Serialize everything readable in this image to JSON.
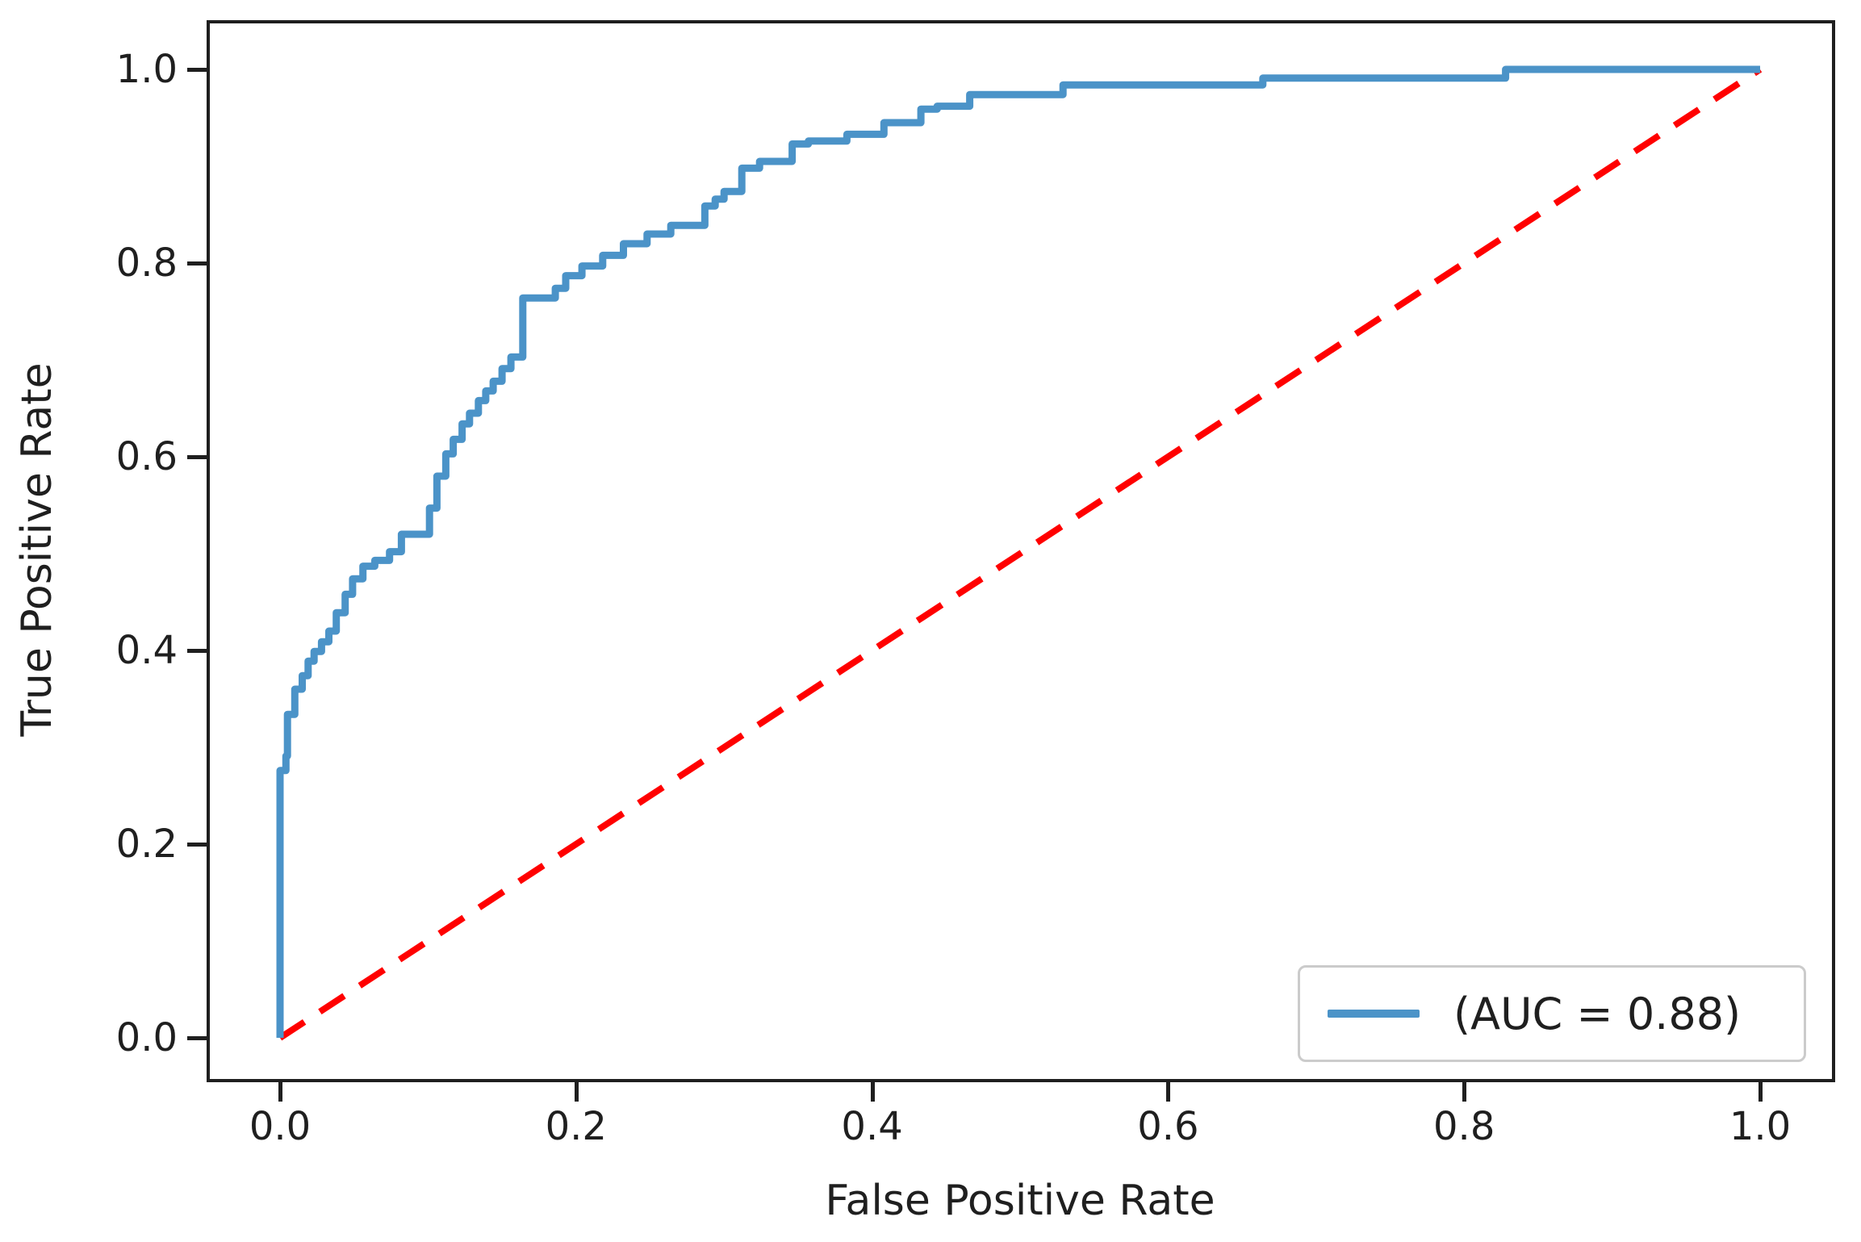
{
  "figure": {
    "title": "",
    "xlabel": "False Positive Rate",
    "ylabel": "True Positive Rate",
    "legend_label": "(AUC = 0.88)",
    "auc_value": "0.88",
    "colors": {
      "roc_line": "#4b93c8",
      "diagonal_line": "#ff0000",
      "axis": "#1f1f1f",
      "legend_border": "#cbcbcb",
      "background": "#ffffff"
    }
  },
  "chart_data": {
    "type": "line",
    "title": "",
    "xlabel": "False Positive Rate",
    "ylabel": "True Positive Rate",
    "xlim": [
      -0.05,
      1.05
    ],
    "ylim": [
      -0.04,
      1.05
    ],
    "grid": false,
    "legend_position": "lower right",
    "legend_entries": [
      {
        "label": "(AUC = 0.88)",
        "color": "#4b93c8",
        "style": "solid"
      }
    ],
    "auc": 0.88,
    "x_ticks": [
      {
        "label": "0.0",
        "value": 0.0
      },
      {
        "label": "0.2",
        "value": 0.2
      },
      {
        "label": "0.4",
        "value": 0.4
      },
      {
        "label": "0.6",
        "value": 0.6
      },
      {
        "label": "0.8",
        "value": 0.8
      },
      {
        "label": "1.0",
        "value": 1.0
      }
    ],
    "y_ticks": [
      {
        "label": "0.0",
        "value": 0.0
      },
      {
        "label": "0.2",
        "value": 0.2
      },
      {
        "label": "0.4",
        "value": 0.4
      },
      {
        "label": "0.6",
        "value": 0.6
      },
      {
        "label": "0.8",
        "value": 0.8
      },
      {
        "label": "1.0",
        "value": 1.0
      }
    ],
    "series": [
      {
        "name": "ROC curve",
        "style": "solid",
        "color": "#4b93c8",
        "line_width": 9,
        "points": [
          [
            0.0,
            0.0
          ],
          [
            0.0,
            0.276
          ],
          [
            0.004,
            0.276
          ],
          [
            0.004,
            0.291
          ],
          [
            0.005,
            0.291
          ],
          [
            0.005,
            0.334
          ],
          [
            0.01,
            0.334
          ],
          [
            0.01,
            0.36
          ],
          [
            0.015,
            0.36
          ],
          [
            0.015,
            0.374
          ],
          [
            0.019,
            0.374
          ],
          [
            0.019,
            0.389
          ],
          [
            0.023,
            0.389
          ],
          [
            0.023,
            0.399
          ],
          [
            0.028,
            0.399
          ],
          [
            0.028,
            0.409
          ],
          [
            0.033,
            0.409
          ],
          [
            0.033,
            0.42
          ],
          [
            0.038,
            0.42
          ],
          [
            0.038,
            0.439
          ],
          [
            0.044,
            0.439
          ],
          [
            0.044,
            0.458
          ],
          [
            0.049,
            0.458
          ],
          [
            0.049,
            0.474
          ],
          [
            0.056,
            0.474
          ],
          [
            0.056,
            0.487
          ],
          [
            0.064,
            0.487
          ],
          [
            0.064,
            0.493
          ],
          [
            0.074,
            0.493
          ],
          [
            0.074,
            0.502
          ],
          [
            0.082,
            0.502
          ],
          [
            0.082,
            0.52
          ],
          [
            0.101,
            0.52
          ],
          [
            0.101,
            0.547
          ],
          [
            0.106,
            0.547
          ],
          [
            0.106,
            0.58
          ],
          [
            0.112,
            0.58
          ],
          [
            0.112,
            0.603
          ],
          [
            0.117,
            0.603
          ],
          [
            0.117,
            0.618
          ],
          [
            0.123,
            0.618
          ],
          [
            0.123,
            0.634
          ],
          [
            0.128,
            0.634
          ],
          [
            0.128,
            0.645
          ],
          [
            0.134,
            0.645
          ],
          [
            0.134,
            0.658
          ],
          [
            0.139,
            0.658
          ],
          [
            0.139,
            0.668
          ],
          [
            0.144,
            0.668
          ],
          [
            0.144,
            0.678
          ],
          [
            0.15,
            0.678
          ],
          [
            0.15,
            0.691
          ],
          [
            0.156,
            0.691
          ],
          [
            0.156,
            0.703
          ],
          [
            0.164,
            0.703
          ],
          [
            0.164,
            0.764
          ],
          [
            0.186,
            0.764
          ],
          [
            0.186,
            0.774
          ],
          [
            0.193,
            0.774
          ],
          [
            0.193,
            0.787
          ],
          [
            0.204,
            0.787
          ],
          [
            0.204,
            0.797
          ],
          [
            0.218,
            0.797
          ],
          [
            0.218,
            0.808
          ],
          [
            0.232,
            0.808
          ],
          [
            0.232,
            0.82
          ],
          [
            0.248,
            0.82
          ],
          [
            0.248,
            0.83
          ],
          [
            0.264,
            0.83
          ],
          [
            0.264,
            0.839
          ],
          [
            0.287,
            0.839
          ],
          [
            0.287,
            0.859
          ],
          [
            0.294,
            0.859
          ],
          [
            0.294,
            0.866
          ],
          [
            0.3,
            0.866
          ],
          [
            0.3,
            0.874
          ],
          [
            0.312,
            0.874
          ],
          [
            0.312,
            0.898
          ],
          [
            0.324,
            0.898
          ],
          [
            0.324,
            0.905
          ],
          [
            0.346,
            0.905
          ],
          [
            0.346,
            0.923
          ],
          [
            0.357,
            0.923
          ],
          [
            0.357,
            0.926
          ],
          [
            0.383,
            0.926
          ],
          [
            0.383,
            0.933
          ],
          [
            0.408,
            0.933
          ],
          [
            0.408,
            0.945
          ],
          [
            0.433,
            0.945
          ],
          [
            0.433,
            0.959
          ],
          [
            0.444,
            0.959
          ],
          [
            0.444,
            0.962
          ],
          [
            0.466,
            0.962
          ],
          [
            0.466,
            0.974
          ],
          [
            0.529,
            0.974
          ],
          [
            0.529,
            0.984
          ],
          [
            0.664,
            0.984
          ],
          [
            0.664,
            0.991
          ],
          [
            0.828,
            0.991
          ],
          [
            0.828,
            1.0
          ],
          [
            1.0,
            1.0
          ]
        ]
      },
      {
        "name": "chance diagonal",
        "style": "dashed",
        "color": "#ff0000",
        "line_width": 8,
        "points": [
          [
            0.0,
            0.0
          ],
          [
            1.0,
            1.0
          ]
        ]
      }
    ]
  }
}
